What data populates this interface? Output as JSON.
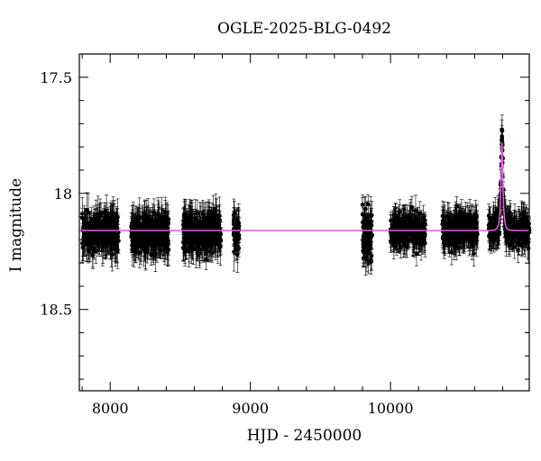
{
  "chart_data": {
    "type": "scatter",
    "title": "OGLE-2025-BLG-0492",
    "xlabel": "HJD - 2450000",
    "ylabel": "I magnitude",
    "xlim": [
      7780,
      10990
    ],
    "ylim": [
      18.85,
      17.4
    ],
    "y_inverted": true,
    "x_ticks": [
      8000,
      9000,
      10000
    ],
    "y_ticks": [
      17.5,
      18,
      18.5
    ],
    "grid": false,
    "legend": "none",
    "data_color": "#000000",
    "model_color": "#e060e0",
    "baseline_mag": 18.16,
    "observing_seasons": [
      {
        "x_start": 7800,
        "x_end": 8060,
        "mean_mag": 18.17,
        "scatter": 0.07,
        "err": 0.06
      },
      {
        "x_start": 8150,
        "x_end": 8420,
        "mean_mag": 18.17,
        "scatter": 0.07,
        "err": 0.06
      },
      {
        "x_start": 8520,
        "x_end": 8790,
        "mean_mag": 18.17,
        "scatter": 0.07,
        "err": 0.06
      },
      {
        "x_start": 8880,
        "x_end": 8920,
        "mean_mag": 18.18,
        "scatter": 0.08,
        "err": 0.06
      },
      {
        "x_start": 9800,
        "x_end": 9870,
        "mean_mag": 18.18,
        "scatter": 0.1,
        "err": 0.06
      },
      {
        "x_start": 10000,
        "x_end": 10250,
        "mean_mag": 18.16,
        "scatter": 0.06,
        "err": 0.05
      },
      {
        "x_start": 10370,
        "x_end": 10620,
        "mean_mag": 18.16,
        "scatter": 0.06,
        "err": 0.05
      },
      {
        "x_start": 10700,
        "x_end": 10990,
        "mean_mag": 18.16,
        "scatter": 0.06,
        "err": 0.05
      }
    ],
    "event": {
      "t0": 10795,
      "peak_mag": 17.78,
      "tE": 14
    }
  }
}
